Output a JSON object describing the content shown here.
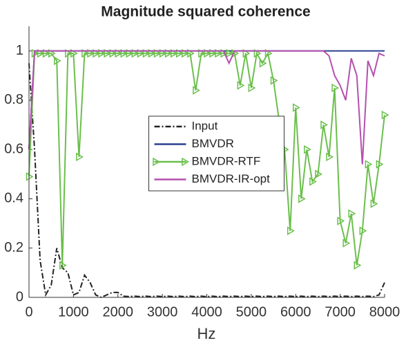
{
  "chart_data": {
    "type": "line",
    "title": "Magnitude squared coherence",
    "x_label": "Hz",
    "x": [
      0,
      125,
      250,
      375,
      500,
      625,
      750,
      875,
      1000,
      1125,
      1250,
      1375,
      1500,
      1625,
      1750,
      1875,
      2000,
      2125,
      2250,
      2375,
      2500,
      2625,
      2750,
      2875,
      3000,
      3125,
      3250,
      3375,
      3500,
      3625,
      3750,
      3875,
      4000,
      4125,
      4250,
      4375,
      4500,
      4625,
      4750,
      4875,
      5000,
      5125,
      5250,
      5375,
      5500,
      5625,
      5750,
      5875,
      6000,
      6125,
      6250,
      6375,
      6500,
      6625,
      6750,
      6875,
      7000,
      7125,
      7250,
      7375,
      7500,
      7625,
      7750,
      7875,
      8000
    ],
    "series": [
      {
        "name": "Input",
        "color": "#222222",
        "linestyle": "dashdot",
        "values": [
          0.95,
          0.6,
          0.15,
          0.01,
          0.05,
          0.2,
          0.12,
          0.1,
          0.01,
          0.02,
          0.09,
          0.06,
          0.01,
          0,
          0.01,
          0.02,
          0.02,
          0.005,
          0.003,
          0.005,
          0.003,
          0.005,
          0.003,
          0.005,
          0.003,
          0.005,
          0.003,
          0.005,
          0.003,
          0.005,
          0.003,
          0.005,
          0.003,
          0.005,
          0.003,
          0.005,
          0.003,
          0.005,
          0.003,
          0.005,
          0.003,
          0.005,
          0.003,
          0.005,
          0.003,
          0.005,
          0.003,
          0.005,
          0.003,
          0.005,
          0.003,
          0.005,
          0.003,
          0.005,
          0.003,
          0.005,
          0.003,
          0.005,
          0.003,
          0.005,
          0.003,
          0.005,
          0.003,
          0.01,
          0.06
        ]
      },
      {
        "name": "BMVDR",
        "color": "#2b3f8f",
        "linestyle": "solid",
        "values": [
          0.6,
          1,
          1,
          1,
          1,
          1,
          1,
          1,
          1,
          1,
          1,
          1,
          1,
          1,
          1,
          1,
          1,
          1,
          1,
          1,
          1,
          1,
          1,
          1,
          1,
          1,
          1,
          1,
          1,
          1,
          1,
          1,
          1,
          1,
          1,
          1,
          1,
          1,
          1,
          1,
          1,
          1,
          1,
          1,
          1,
          1,
          1,
          1,
          1,
          1,
          1,
          1,
          1,
          1,
          1,
          1,
          1,
          1,
          1,
          1,
          1,
          1,
          1,
          1,
          1
        ]
      },
      {
        "name": "BMVDR-RTF",
        "color": "#6abf4b",
        "linestyle": "solid",
        "marker": "triangle-right",
        "values": [
          0.49,
          0.99,
          0.99,
          0.99,
          0.99,
          0.96,
          0.13,
          0.99,
          0.99,
          0.57,
          0.99,
          0.99,
          0.99,
          0.99,
          0.99,
          0.99,
          0.99,
          0.99,
          0.99,
          0.99,
          0.99,
          0.99,
          0.99,
          0.99,
          0.99,
          0.99,
          0.99,
          0.99,
          0.99,
          0.99,
          0.84,
          0.99,
          0.99,
          0.99,
          0.99,
          0.99,
          0.99,
          0.99,
          0.86,
          0.99,
          0.85,
          0.99,
          0.95,
          0.99,
          0.88,
          0.72,
          0.6,
          0.27,
          0.77,
          0.4,
          0.6,
          0.47,
          0.5,
          0.7,
          0.57,
          0.85,
          0.31,
          0.22,
          0.34,
          0.13,
          0.27,
          0.54,
          0.38,
          0.54,
          0.74
        ]
      },
      {
        "name": "BMVDR-IR-opt",
        "color": "#b44fae",
        "linestyle": "solid",
        "values": [
          0.6,
          1,
          1,
          1,
          1,
          1,
          1,
          1,
          1,
          1,
          1,
          1,
          1,
          1,
          1,
          1,
          1,
          1,
          1,
          1,
          1,
          1,
          1,
          1,
          1,
          1,
          1,
          1,
          1,
          1,
          1,
          1,
          1,
          1,
          1,
          1,
          0.95,
          1,
          1,
          1,
          1,
          1,
          1,
          1,
          1,
          1,
          1,
          1,
          1,
          1,
          1,
          1,
          1,
          1,
          0.98,
          0.9,
          0.86,
          0.8,
          0.97,
          0.9,
          0.54,
          0.96,
          0.9,
          0.99,
          0.98
        ]
      }
    ],
    "xlim": [
      0,
      8000
    ],
    "xticks": [
      0,
      1000,
      2000,
      3000,
      4000,
      5000,
      6000,
      7000,
      8000
    ],
    "ylim": [
      0,
      1.1
    ],
    "yticks": [
      0,
      0.2,
      0.4,
      0.6,
      0.8,
      1
    ],
    "grid": false,
    "legend": "center"
  }
}
